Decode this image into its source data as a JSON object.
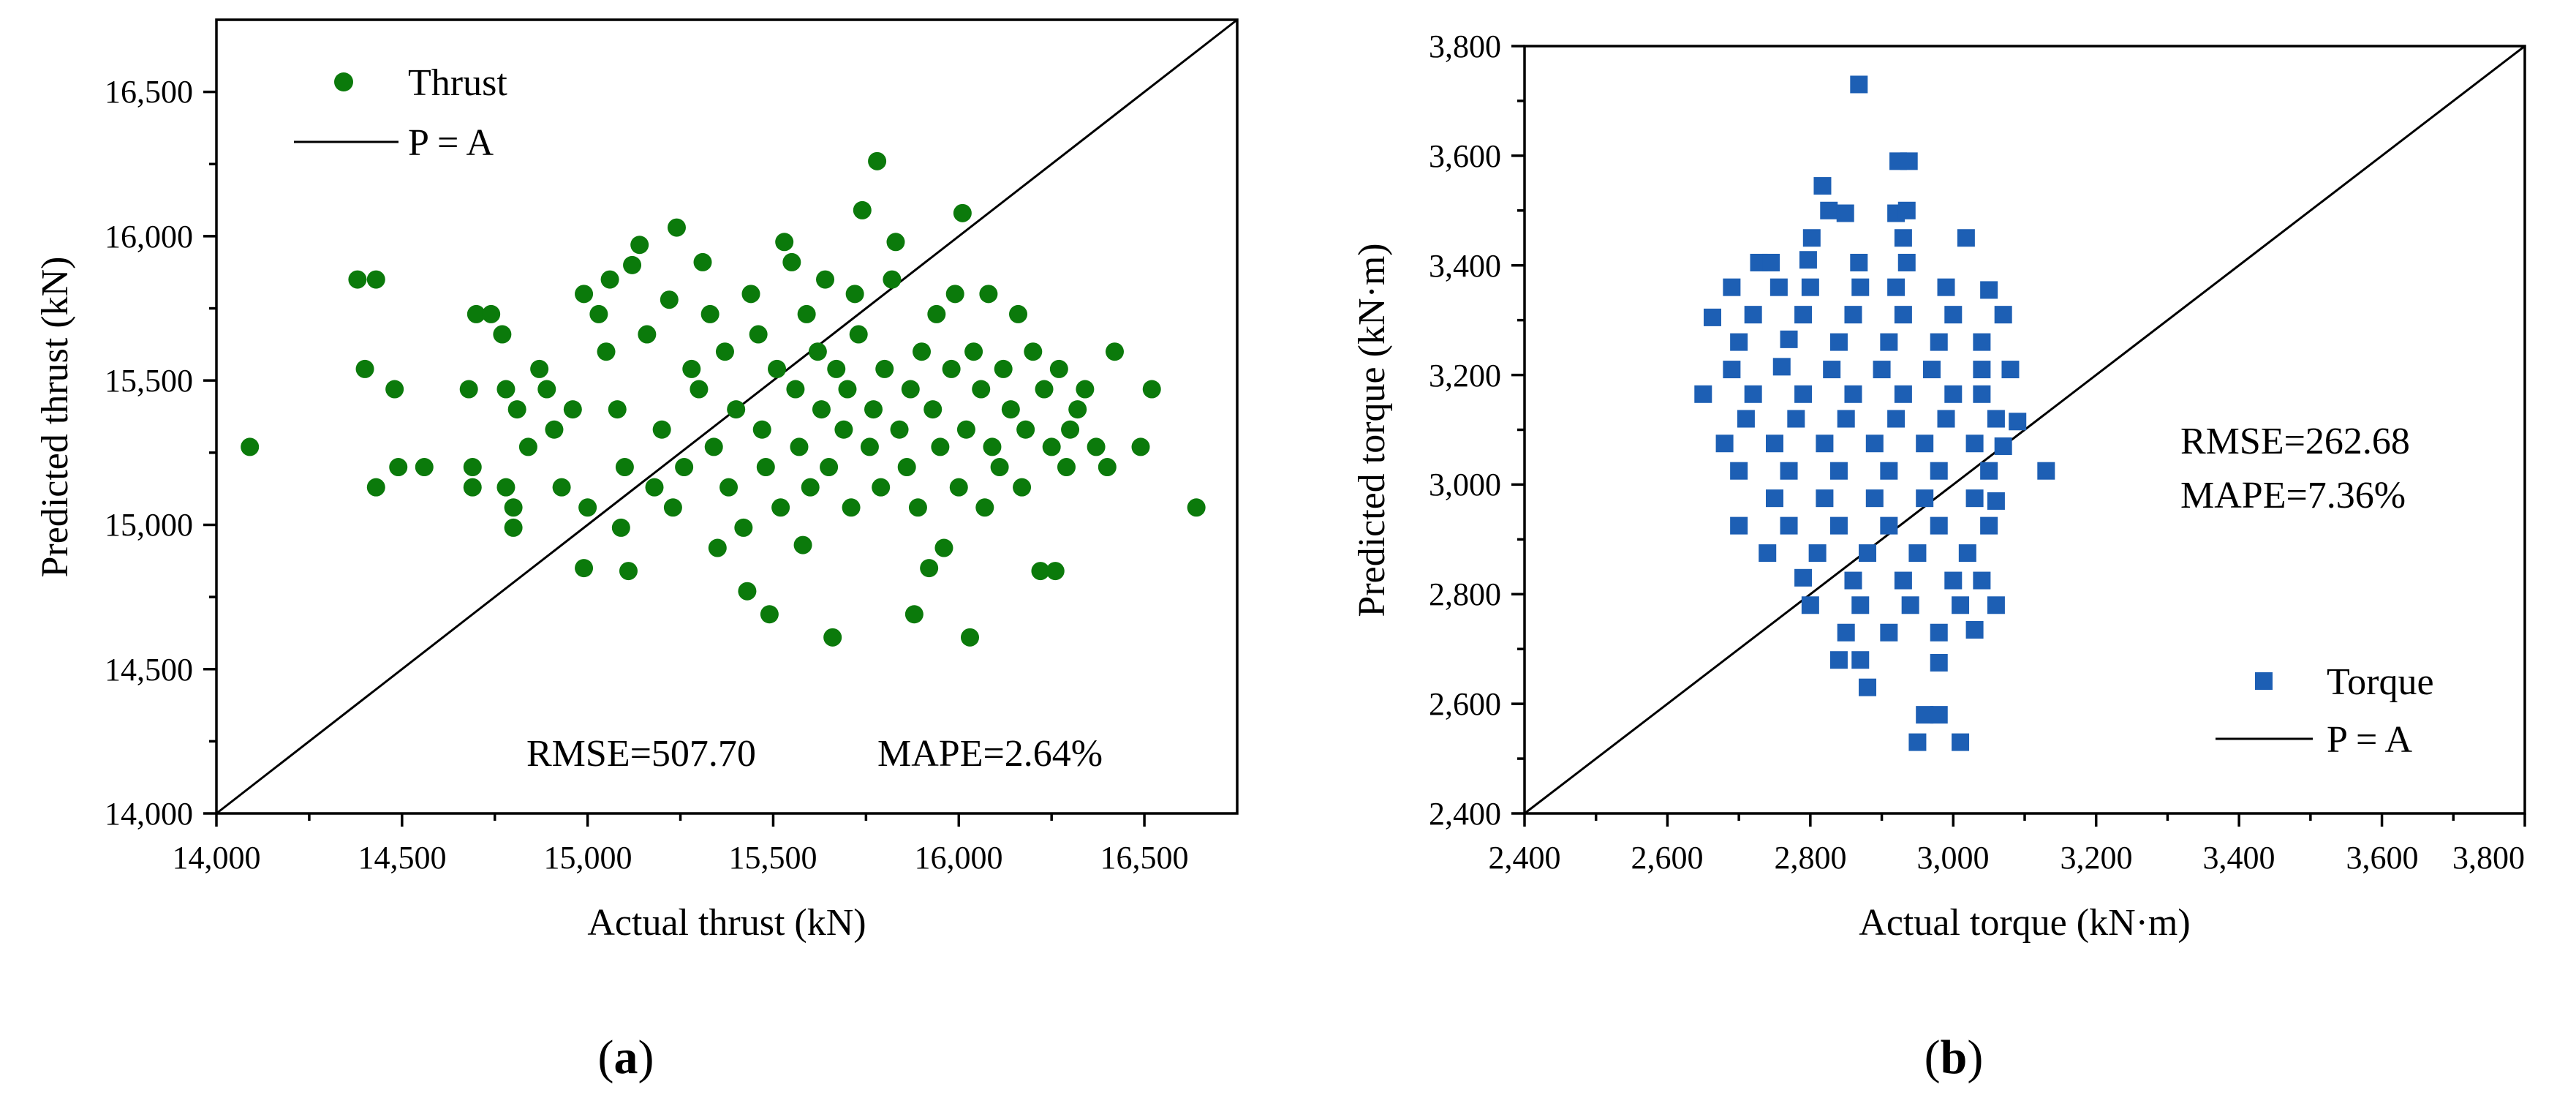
{
  "chart_data": [
    {
      "type": "scatter",
      "panel_label": {
        "open": "(",
        "letter": "a",
        "close": ")"
      },
      "title": "",
      "xlabel": "Actual thrust (kN)",
      "ylabel": "Predicted thrust (kN)",
      "xlim": [
        14000,
        16750
      ],
      "ylim": [
        14000,
        16750
      ],
      "xticks": [
        14000,
        14500,
        15000,
        15500,
        16000,
        16500
      ],
      "yticks": [
        14000,
        14500,
        15000,
        15500,
        16000,
        16500
      ],
      "xtick_labels": [
        "14,000",
        "14,500",
        "15,000",
        "15,500",
        "16,000",
        "16,500"
      ],
      "ytick_labels": [
        "14,000",
        "14,500",
        "15,000",
        "15,500",
        "16,000",
        "16,500"
      ],
      "grid": false,
      "legend_position": "top-left",
      "legend": {
        "marker_label": "Thrust",
        "line_label": "P = A"
      },
      "annotations": {
        "rmse": "RMSE=507.70",
        "mape": "MAPE=2.64%"
      },
      "series": [
        {
          "name": "Thrust",
          "marker": "circle",
          "color": "#0b7a0b",
          "points": [
            [
              14090,
              15270
            ],
            [
              14380,
              15850
            ],
            [
              14430,
              15850
            ],
            [
              14400,
              15540
            ],
            [
              14480,
              15470
            ],
            [
              14430,
              15130
            ],
            [
              14490,
              15200
            ],
            [
              14560,
              15200
            ],
            [
              14680,
              15470
            ],
            [
              14690,
              15200
            ],
            [
              14690,
              15130
            ],
            [
              14700,
              15730
            ],
            [
              14740,
              15730
            ],
            [
              14770,
              15660
            ],
            [
              14780,
              15470
            ],
            [
              14780,
              15130
            ],
            [
              14800,
              15060
            ],
            [
              14800,
              14990
            ],
            [
              14810,
              15400
            ],
            [
              14840,
              15270
            ],
            [
              14870,
              15540
            ],
            [
              14890,
              15470
            ],
            [
              14910,
              15330
            ],
            [
              14930,
              15130
            ],
            [
              14960,
              15400
            ],
            [
              14990,
              15800
            ],
            [
              14990,
              14850
            ],
            [
              15000,
              15060
            ],
            [
              15030,
              15730
            ],
            [
              15050,
              15600
            ],
            [
              15060,
              15850
            ],
            [
              15080,
              15400
            ],
            [
              15090,
              14990
            ],
            [
              15100,
              15200
            ],
            [
              15110,
              14840
            ],
            [
              15120,
              15900
            ],
            [
              15140,
              15970
            ],
            [
              15160,
              15660
            ],
            [
              15180,
              15130
            ],
            [
              15200,
              15330
            ],
            [
              15220,
              15780
            ],
            [
              15230,
              15060
            ],
            [
              15240,
              16030
            ],
            [
              15260,
              15200
            ],
            [
              15280,
              15540
            ],
            [
              15300,
              15470
            ],
            [
              15310,
              15910
            ],
            [
              15330,
              15730
            ],
            [
              15340,
              15270
            ],
            [
              15350,
              14920
            ],
            [
              15370,
              15600
            ],
            [
              15380,
              15130
            ],
            [
              15400,
              15400
            ],
            [
              15420,
              14990
            ],
            [
              15430,
              14770
            ],
            [
              15440,
              15800
            ],
            [
              15460,
              15660
            ],
            [
              15470,
              15330
            ],
            [
              15480,
              15200
            ],
            [
              15490,
              14690
            ],
            [
              15510,
              15540
            ],
            [
              15520,
              15060
            ],
            [
              15530,
              15980
            ],
            [
              15550,
              15910
            ],
            [
              15560,
              15470
            ],
            [
              15570,
              15270
            ],
            [
              15580,
              14930
            ],
            [
              15590,
              15730
            ],
            [
              15600,
              15130
            ],
            [
              15620,
              15600
            ],
            [
              15630,
              15400
            ],
            [
              15640,
              15850
            ],
            [
              15650,
              15200
            ],
            [
              15660,
              14610
            ],
            [
              15670,
              15540
            ],
            [
              15690,
              15330
            ],
            [
              15700,
              15470
            ],
            [
              15710,
              15060
            ],
            [
              15720,
              15800
            ],
            [
              15730,
              15660
            ],
            [
              15740,
              16090
            ],
            [
              15760,
              15270
            ],
            [
              15770,
              15400
            ],
            [
              15780,
              16260
            ],
            [
              15790,
              15130
            ],
            [
              15800,
              15540
            ],
            [
              15820,
              15850
            ],
            [
              15830,
              15980
            ],
            [
              15840,
              15330
            ],
            [
              15860,
              15200
            ],
            [
              15870,
              15470
            ],
            [
              15880,
              14690
            ],
            [
              15890,
              15060
            ],
            [
              15900,
              15600
            ],
            [
              15920,
              14850
            ],
            [
              15930,
              15400
            ],
            [
              15940,
              15730
            ],
            [
              15950,
              15270
            ],
            [
              15960,
              14920
            ],
            [
              15980,
              15540
            ],
            [
              15990,
              15800
            ],
            [
              16000,
              15130
            ],
            [
              16010,
              16080
            ],
            [
              16020,
              15330
            ],
            [
              16030,
              14610
            ],
            [
              16040,
              15600
            ],
            [
              16060,
              15470
            ],
            [
              16070,
              15060
            ],
            [
              16080,
              15800
            ],
            [
              16090,
              15270
            ],
            [
              16110,
              15200
            ],
            [
              16120,
              15540
            ],
            [
              16140,
              15400
            ],
            [
              16160,
              15730
            ],
            [
              16170,
              15130
            ],
            [
              16180,
              15330
            ],
            [
              16200,
              15600
            ],
            [
              16220,
              14840
            ],
            [
              16230,
              15470
            ],
            [
              16250,
              15270
            ],
            [
              16260,
              14840
            ],
            [
              16270,
              15540
            ],
            [
              16290,
              15200
            ],
            [
              16300,
              15330
            ],
            [
              16320,
              15400
            ],
            [
              16340,
              15470
            ],
            [
              16370,
              15270
            ],
            [
              16400,
              15200
            ],
            [
              16420,
              15600
            ],
            [
              16490,
              15270
            ],
            [
              16520,
              15470
            ],
            [
              16640,
              15060
            ]
          ]
        }
      ]
    },
    {
      "type": "scatter",
      "panel_label": {
        "open": "(",
        "letter": "b",
        "close": ")"
      },
      "title": "",
      "xlabel": "Actual torque (kN·m)",
      "ylabel": "Predicted torque (kN·m)",
      "xlim": [
        2400,
        3800
      ],
      "ylim": [
        2400,
        3800
      ],
      "xticks": [
        2400,
        2600,
        2800,
        3000,
        3200,
        3400,
        3600,
        3800
      ],
      "yticks": [
        2400,
        2600,
        2800,
        3000,
        3200,
        3400,
        3600,
        3800
      ],
      "xtick_labels": [
        "2,400",
        "2,600",
        "2,800",
        "3,000",
        "3,200",
        "3,400",
        "3,600",
        "3,800"
      ],
      "ytick_labels": [
        "2,400",
        "2,600",
        "2,800",
        "3,000",
        "3,200",
        "3,400",
        "3,600",
        "3,800"
      ],
      "grid": false,
      "legend_position": "bottom-right",
      "legend": {
        "marker_label": "Torque",
        "line_label": "P = A"
      },
      "annotations": {
        "rmse": "RMSE=262.68",
        "mape": "MAPE=7.36%"
      },
      "series": [
        {
          "name": "Torque",
          "marker": "square",
          "color": "#1d5fb4",
          "points": [
            [
              2868,
              3730
            ],
            [
              2923,
              3590
            ],
            [
              2938,
              3590
            ],
            [
              2817,
              3545
            ],
            [
              2826,
              3500
            ],
            [
              2849,
              3495
            ],
            [
              2920,
              3495
            ],
            [
              2935,
              3500
            ],
            [
              3018,
              3450
            ],
            [
              2802,
              3450
            ],
            [
              2930,
              3450
            ],
            [
              2728,
              3405
            ],
            [
              2745,
              3405
            ],
            [
              2797,
              3410
            ],
            [
              2868,
              3405
            ],
            [
              2935,
              3405
            ],
            [
              2690,
              3360
            ],
            [
              2756,
              3360
            ],
            [
              2800,
              3360
            ],
            [
              2870,
              3360
            ],
            [
              2920,
              3360
            ],
            [
              2990,
              3360
            ],
            [
              3050,
              3355
            ],
            [
              2663,
              3305
            ],
            [
              2720,
              3310
            ],
            [
              2790,
              3310
            ],
            [
              2860,
              3310
            ],
            [
              2930,
              3310
            ],
            [
              3000,
              3310
            ],
            [
              3070,
              3310
            ],
            [
              2700,
              3260
            ],
            [
              2770,
              3265
            ],
            [
              2840,
              3260
            ],
            [
              2910,
              3260
            ],
            [
              2980,
              3260
            ],
            [
              3040,
              3260
            ],
            [
              2690,
              3210
            ],
            [
              2760,
              3215
            ],
            [
              2830,
              3210
            ],
            [
              2900,
              3210
            ],
            [
              2970,
              3210
            ],
            [
              3040,
              3210
            ],
            [
              3080,
              3210
            ],
            [
              2650,
              3165
            ],
            [
              2720,
              3165
            ],
            [
              2790,
              3165
            ],
            [
              2860,
              3165
            ],
            [
              2930,
              3165
            ],
            [
              3000,
              3165
            ],
            [
              3040,
              3165
            ],
            [
              2710,
              3120
            ],
            [
              2780,
              3120
            ],
            [
              2850,
              3120
            ],
            [
              2920,
              3120
            ],
            [
              2990,
              3120
            ],
            [
              3060,
              3120
            ],
            [
              3090,
              3115
            ],
            [
              2680,
              3075
            ],
            [
              2750,
              3075
            ],
            [
              2820,
              3075
            ],
            [
              2890,
              3075
            ],
            [
              2960,
              3075
            ],
            [
              3030,
              3075
            ],
            [
              3070,
              3070
            ],
            [
              2700,
              3025
            ],
            [
              2770,
              3025
            ],
            [
              2840,
              3025
            ],
            [
              2910,
              3025
            ],
            [
              2980,
              3025
            ],
            [
              3050,
              3025
            ],
            [
              3130,
              3025
            ],
            [
              2750,
              2975
            ],
            [
              2820,
              2975
            ],
            [
              2890,
              2975
            ],
            [
              2960,
              2975
            ],
            [
              3030,
              2975
            ],
            [
              3060,
              2970
            ],
            [
              2700,
              2925
            ],
            [
              2770,
              2925
            ],
            [
              2840,
              2925
            ],
            [
              2910,
              2925
            ],
            [
              2980,
              2925
            ],
            [
              3050,
              2925
            ],
            [
              2740,
              2875
            ],
            [
              2810,
              2875
            ],
            [
              2880,
              2875
            ],
            [
              2950,
              2875
            ],
            [
              3020,
              2875
            ],
            [
              2790,
              2830
            ],
            [
              2860,
              2825
            ],
            [
              2930,
              2825
            ],
            [
              3000,
              2825
            ],
            [
              3040,
              2825
            ],
            [
              2800,
              2780
            ],
            [
              2870,
              2780
            ],
            [
              2940,
              2780
            ],
            [
              3010,
              2780
            ],
            [
              3060,
              2780
            ],
            [
              2850,
              2730
            ],
            [
              2910,
              2730
            ],
            [
              2980,
              2730
            ],
            [
              3030,
              2735
            ],
            [
              2840,
              2680
            ],
            [
              2870,
              2680
            ],
            [
              2980,
              2675
            ],
            [
              2880,
              2630
            ],
            [
              2960,
              2580
            ],
            [
              2980,
              2580
            ],
            [
              2950,
              2530
            ],
            [
              3010,
              2530
            ]
          ]
        }
      ]
    }
  ]
}
